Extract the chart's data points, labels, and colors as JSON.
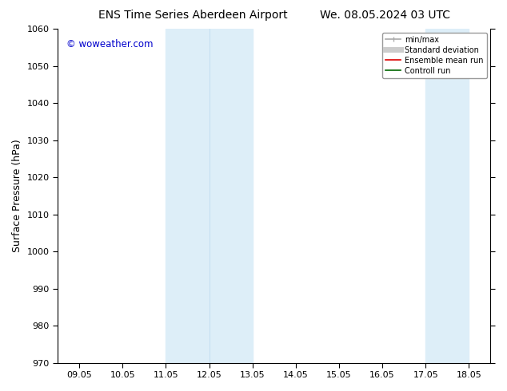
{
  "title_left": "ENS Time Series Aberdeen Airport",
  "title_right": "We. 08.05.2024 03 UTC",
  "ylabel": "Surface Pressure (hPa)",
  "ylim": [
    970,
    1060
  ],
  "yticks": [
    970,
    980,
    990,
    1000,
    1010,
    1020,
    1030,
    1040,
    1050,
    1060
  ],
  "xtick_labels": [
    "09.05",
    "10.05",
    "11.05",
    "12.05",
    "13.05",
    "14.05",
    "15.05",
    "16.05",
    "17.05",
    "18.05"
  ],
  "xtick_positions": [
    0,
    1,
    2,
    3,
    4,
    5,
    6,
    7,
    8,
    9
  ],
  "xlim": [
    -0.5,
    9.5
  ],
  "shade_bands": [
    {
      "xmin": 2.0,
      "xmax": 3.0,
      "color": "#ddeef8"
    },
    {
      "xmin": 3.5,
      "xmax": 4.0,
      "color": "#ddeef8"
    },
    {
      "xmin": 8.0,
      "xmax": 8.5,
      "color": "#ddeef8"
    },
    {
      "xmin": 8.5,
      "xmax": 9.0,
      "color": "#ddeef8"
    }
  ],
  "watermark": "© woweather.com",
  "watermark_color": "#0000cc",
  "legend_entries": [
    {
      "label": "min/max",
      "color": "#aaaaaa",
      "lw": 1.2
    },
    {
      "label": "Standard deviation",
      "color": "#cccccc",
      "lw": 5
    },
    {
      "label": "Ensemble mean run",
      "color": "#dd0000",
      "lw": 1.2
    },
    {
      "label": "Controll run",
      "color": "#006600",
      "lw": 1.2
    }
  ],
  "bg_color": "#ffffff",
  "title_fontsize": 10,
  "tick_fontsize": 8,
  "ylabel_fontsize": 9
}
